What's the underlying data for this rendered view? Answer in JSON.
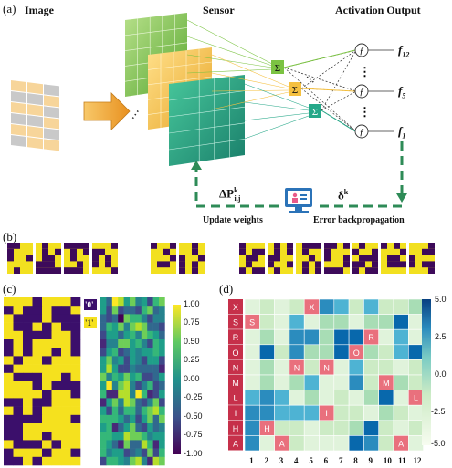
{
  "panel_a": {
    "label": "(a)",
    "image_title": "Image",
    "sensor_title": "Sensor",
    "output_title": "Activation Output",
    "outputs": [
      "f12",
      "f5",
      "f1"
    ],
    "output_display": [
      {
        "base": "f",
        "sub": "12"
      },
      {
        "base": "f",
        "sub": "5"
      },
      {
        "base": "f",
        "sub": "1"
      }
    ],
    "sum_symbol": "Σ",
    "func_symbol": "ƒ",
    "ellipsis": "⋮",
    "delta_p": "ΔP",
    "delta_p_sup": "k",
    "delta_p_sub": "i,j",
    "delta_k": "δ",
    "delta_k_sup": "k",
    "update_weights": "Update weights",
    "error_bp": "Error backpropagation",
    "colors": {
      "green": "#7bc342",
      "yellow": "#f5c040",
      "teal": "#26a889",
      "arrow": "#f2a23a",
      "dash": "#2e8b57"
    }
  },
  "panel_b": {
    "label": "(b)"
  },
  "panel_c": {
    "label": "(c)",
    "key0": "'0'",
    "key1": "'1'",
    "cbar_ticks": [
      "1.00",
      "0.75",
      "0.50",
      "0.25",
      "0.00",
      "-0.25",
      "-0.50",
      "-0.75",
      "-1.00"
    ]
  },
  "panel_d": {
    "label": "(d)",
    "rows": [
      "X",
      "S",
      "R",
      "O",
      "N",
      "M",
      "L",
      "I",
      "H",
      "A"
    ],
    "cols": [
      "1",
      "2",
      "3",
      "4",
      "5",
      "6",
      "7",
      "8",
      "9",
      "10",
      "11",
      "12"
    ],
    "cbar_ticks": [
      "5.0",
      "2.5",
      "0.0",
      "-2.5",
      "-5.0"
    ],
    "highlight": [
      [
        0,
        4
      ],
      [
        1,
        0
      ],
      [
        2,
        8
      ],
      [
        3,
        7
      ],
      [
        4,
        3
      ],
      [
        4,
        5
      ],
      [
        5,
        9
      ],
      [
        6,
        11
      ],
      [
        7,
        5
      ],
      [
        8,
        1
      ],
      [
        9,
        2
      ],
      [
        9,
        10
      ]
    ]
  }
}
